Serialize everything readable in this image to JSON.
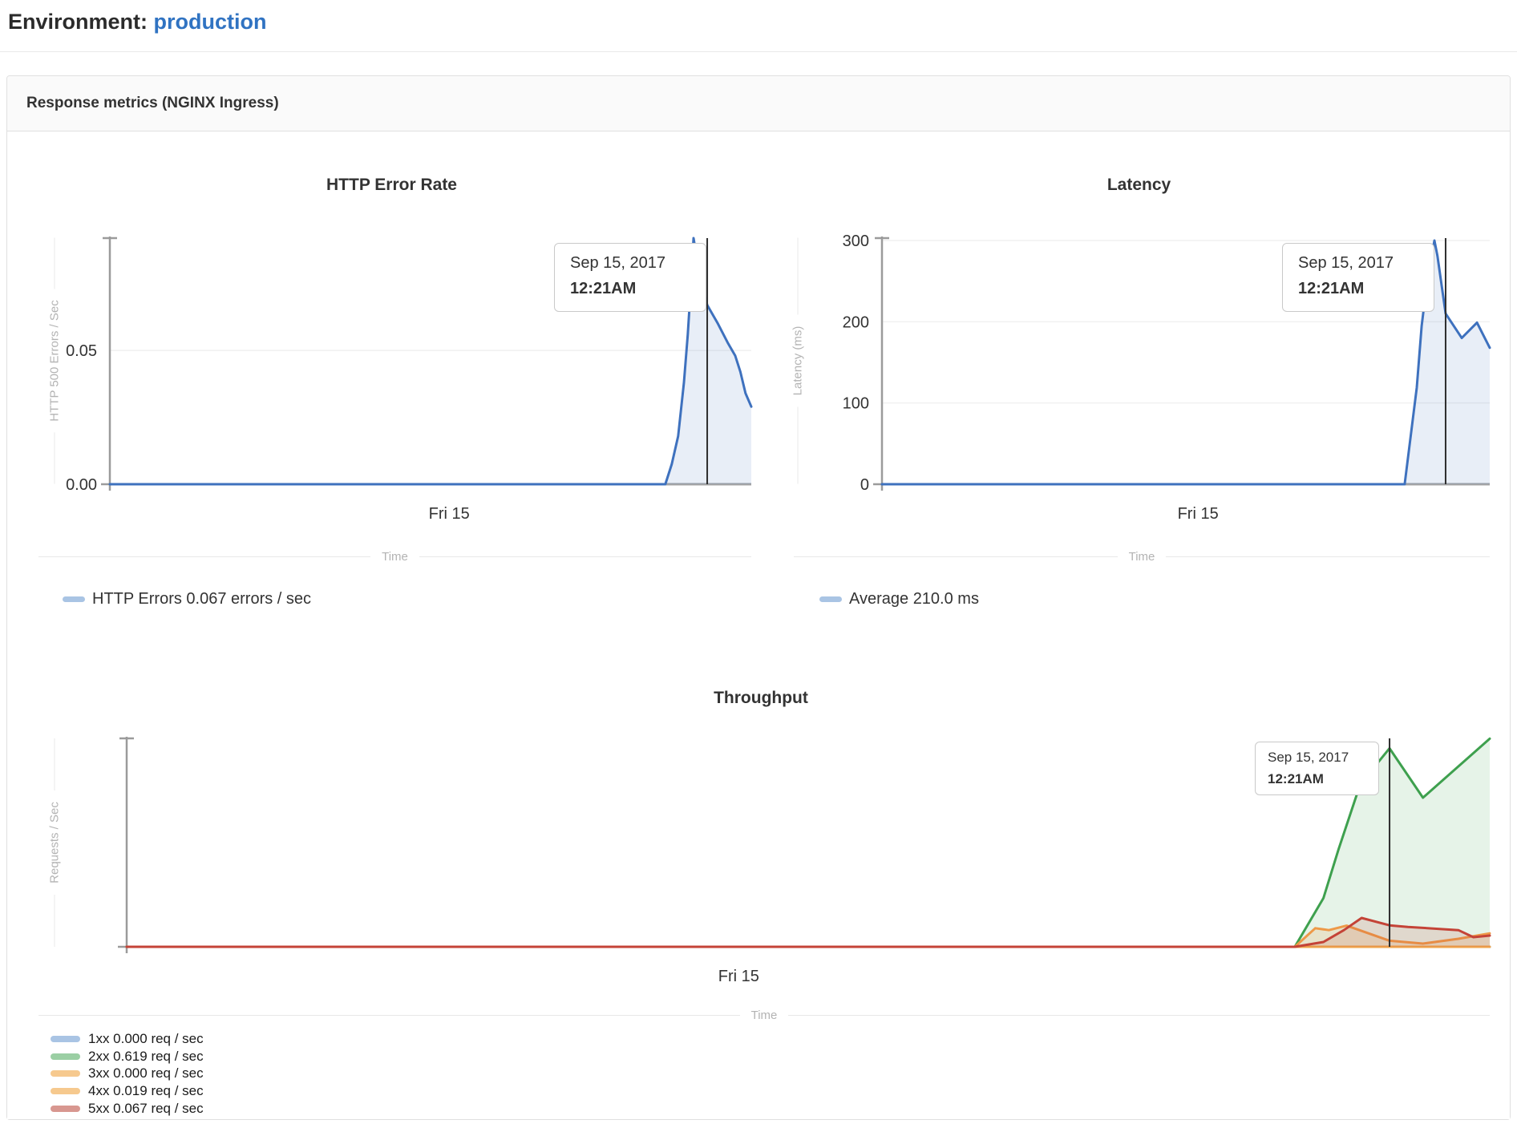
{
  "header": {
    "label": "Environment:",
    "environment": "production"
  },
  "panel": {
    "title": "Response metrics (NGINX Ingress)"
  },
  "cursor_tooltip": {
    "date": "Sep 15, 2017",
    "time": "12:21AM"
  },
  "legends": {
    "error_rate": {
      "label": "HTTP Errors 0.067 errors / sec",
      "swatch": "#a9c4e4"
    },
    "latency": {
      "label": "Average 210.0 ms",
      "swatch": "#a9c4e4"
    },
    "throughput": [
      {
        "label": "1xx 0.000 req / sec",
        "swatch": "#a9c4e4"
      },
      {
        "label": "2xx 0.619 req / sec",
        "swatch": "#9bcfa4"
      },
      {
        "label": "3xx 0.000 req / sec",
        "swatch": "#f6c98e"
      },
      {
        "label": "4xx 0.019 req / sec",
        "swatch": "#f6c98e"
      },
      {
        "label": "5xx 0.067 req / sec",
        "swatch": "#d89790"
      }
    ]
  },
  "colors": {
    "link": "#3073c2",
    "cursor_line": "#2d2d2d",
    "axis": "#9b9b9b",
    "gridline": "#f1f1f1",
    "tick_text": "#333333"
  },
  "chart_data": [
    {
      "type": "area",
      "title": "HTTP Error Rate",
      "ylabel": "HTTP 500 Errors / Sec",
      "xlabel": "Time",
      "ylim": [
        0,
        0.092
      ],
      "grid": true,
      "yticks": [
        {
          "v": 0,
          "label": "0.00"
        },
        {
          "v": 0.05,
          "label": "0.05"
        }
      ],
      "x_tick": {
        "f": 0.529,
        "label": "Fri 15"
      },
      "cursor_f": 0.9313,
      "cursor_value": 0.067,
      "series": [
        {
          "name": "HTTP Errors",
          "color": "#3e71be",
          "fill": "rgba(62,113,190,0.12)",
          "points": [
            [
              0,
              0
            ],
            [
              0.866,
              0
            ],
            [
              0.876,
              0.0075
            ],
            [
              0.886,
              0.018
            ],
            [
              0.895,
              0.038
            ],
            [
              0.901,
              0.056
            ],
            [
              0.906,
              0.075
            ],
            [
              0.91,
              0.092
            ],
            [
              0.916,
              0.083
            ],
            [
              0.9313,
              0.067
            ],
            [
              0.948,
              0.06
            ],
            [
              0.963,
              0.053
            ],
            [
              0.975,
              0.048
            ],
            [
              0.983,
              0.042
            ],
            [
              0.991,
              0.034
            ],
            [
              1,
              0.029
            ]
          ]
        }
      ]
    },
    {
      "type": "area",
      "title": "Latency",
      "ylabel": "Latency (ms)",
      "xlabel": "Time",
      "ylim": [
        0,
        303
      ],
      "grid": true,
      "yticks": [
        {
          "v": 0,
          "label": "0"
        },
        {
          "v": 100,
          "label": "100"
        },
        {
          "v": 200,
          "label": "200"
        },
        {
          "v": 300,
          "label": "300"
        }
      ],
      "x_tick": {
        "f": 0.52,
        "label": "Fri 15"
      },
      "cursor_f": 0.9274,
      "cursor_value": 210.0,
      "series": [
        {
          "name": "Average",
          "color": "#3e71be",
          "fill": "rgba(62,113,190,0.12)",
          "points": [
            [
              0,
              0
            ],
            [
              0.86,
              0
            ],
            [
              0.88,
              119
            ],
            [
              0.888,
              195
            ],
            [
              0.897,
              250
            ],
            [
              0.909,
              300
            ],
            [
              0.914,
              281
            ],
            [
              0.9274,
              210
            ],
            [
              0.954,
              180
            ],
            [
              0.979,
              199
            ],
            [
              1,
              168
            ]
          ]
        }
      ]
    },
    {
      "type": "area",
      "title": "Throughput",
      "ylabel": "Requests / Sec",
      "xlabel": "Time",
      "ylim": [
        0,
        0.65
      ],
      "grid": false,
      "yticks": [],
      "x_tick": {
        "f": 0.449,
        "label": "Fri 15"
      },
      "cursor_f": 0.9265,
      "series": [
        {
          "name": "1xx",
          "color": "#3e71be",
          "fill": "rgba(62,113,190,0.12)",
          "points": [
            [
              0,
              0
            ],
            [
              1,
              0
            ]
          ]
        },
        {
          "name": "2xx",
          "color": "#3ea04e",
          "fill": "rgba(62,160,78,0.13)",
          "points": [
            [
              0,
              0
            ],
            [
              0.857,
              0
            ],
            [
              0.878,
              0.152
            ],
            [
              0.889,
              0.303
            ],
            [
              0.905,
              0.507
            ],
            [
              0.9265,
              0.619
            ],
            [
              0.951,
              0.465
            ],
            [
              1,
              0.649
            ]
          ]
        },
        {
          "name": "3xx",
          "color": "#efa64d",
          "fill": "rgba(239,166,77,0.15)",
          "points": [
            [
              0,
              0
            ],
            [
              1,
              0
            ]
          ]
        },
        {
          "name": "4xx",
          "color": "#ee9948",
          "fill": "rgba(238,153,72,0.18)",
          "points": [
            [
              0,
              0
            ],
            [
              0.857,
              0
            ],
            [
              0.872,
              0.058
            ],
            [
              0.882,
              0.052
            ],
            [
              0.895,
              0.066
            ],
            [
              0.9265,
              0.019
            ],
            [
              0.951,
              0.01
            ],
            [
              0.977,
              0.025
            ],
            [
              1,
              0.042
            ]
          ]
        },
        {
          "name": "5xx",
          "color": "#c44337",
          "fill": "rgba(196,67,55,0.15)",
          "points": [
            [
              0,
              0
            ],
            [
              0.857,
              0
            ],
            [
              0.878,
              0.015
            ],
            [
              0.893,
              0.052
            ],
            [
              0.906,
              0.09
            ],
            [
              0.9265,
              0.067
            ],
            [
              0.94,
              0.062
            ],
            [
              0.977,
              0.052
            ],
            [
              0.988,
              0.03
            ],
            [
              1,
              0.035
            ]
          ]
        }
      ]
    }
  ]
}
